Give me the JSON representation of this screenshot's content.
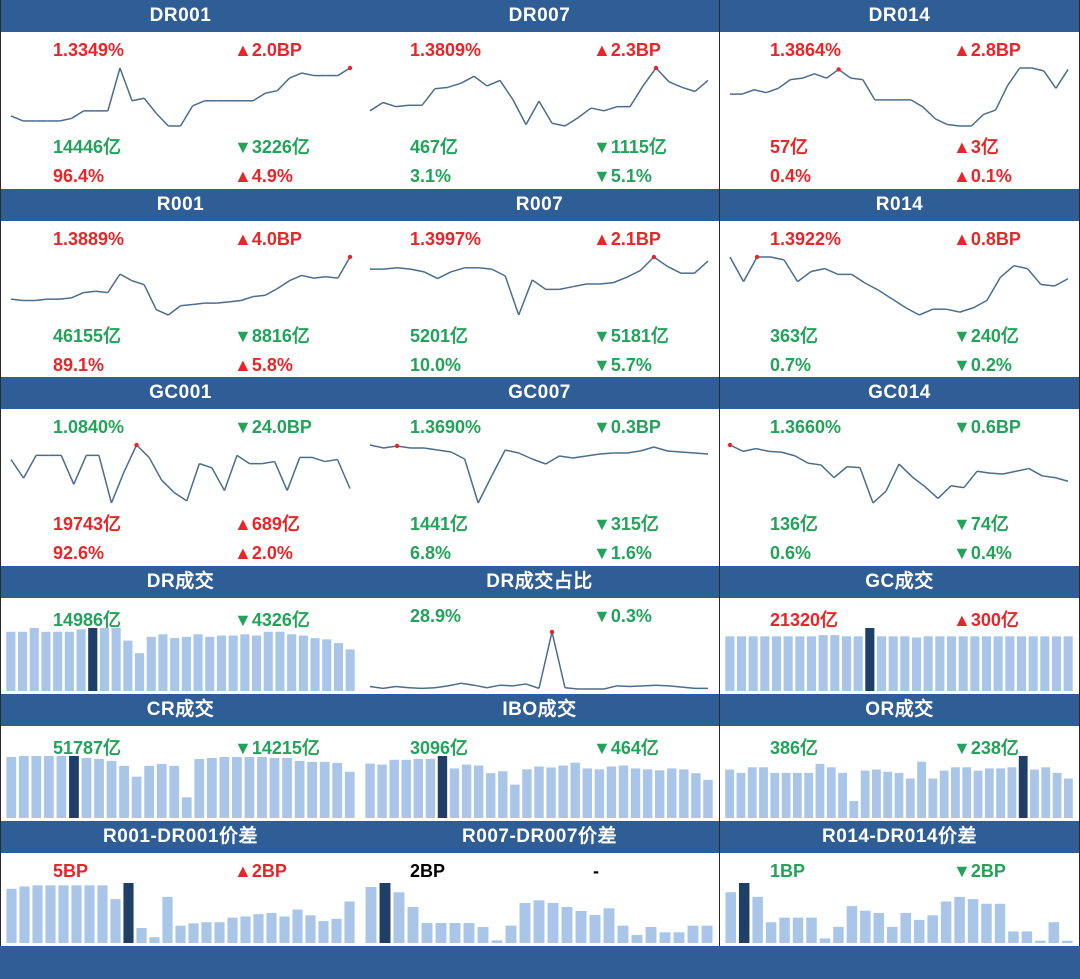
{
  "colors": {
    "header_bg": "#2f5e96",
    "up": "#e8262a",
    "down": "#23a35a",
    "line": "#4a6d8c",
    "bar": "#a9c6e8",
    "bar_highlight": "#1f3f66",
    "marker": "#e8262a"
  },
  "icons": {
    "up": "up-triangle",
    "down": "down-triangle"
  },
  "panels": [
    {
      "title": "DR001",
      "kind": "line",
      "rate": "1.3349%",
      "rate_color": "red",
      "change": "▲2.0BP",
      "change_color": "red",
      "volume": "14446亿",
      "volume_color": "green",
      "vol_change": "▼3226亿",
      "vol_change_color": "green",
      "share": "96.4%",
      "share_color": "red",
      "share_change": "▲4.9%",
      "share_change_color": "red",
      "series": [
        1.321,
        1.319,
        1.319,
        1.319,
        1.319,
        1.32,
        1.323,
        1.323,
        1.323,
        1.34,
        1.327,
        1.328,
        1.322,
        1.317,
        1.317,
        1.325,
        1.327,
        1.327,
        1.327,
        1.327,
        1.327,
        1.33,
        1.331,
        1.336,
        1.338,
        1.337,
        1.337,
        1.337,
        1.34
      ],
      "marker_index": 28
    },
    {
      "title": "DR007",
      "kind": "line",
      "rate": "1.3809%",
      "rate_color": "red",
      "change": "▲2.3BP",
      "change_color": "red",
      "volume": "467亿",
      "volume_color": "green",
      "vol_change": "▼1115亿",
      "vol_change_color": "green",
      "share": "3.1%",
      "share_color": "green",
      "share_change": "▼5.1%",
      "share_change_color": "green",
      "series": [
        1.35,
        1.356,
        1.353,
        1.354,
        1.354,
        1.366,
        1.367,
        1.37,
        1.375,
        1.368,
        1.372,
        1.358,
        1.34,
        1.357,
        1.341,
        1.339,
        1.345,
        1.352,
        1.35,
        1.353,
        1.353,
        1.368,
        1.381,
        1.371,
        1.367,
        1.364,
        1.372
      ],
      "marker_index": 22
    },
    {
      "title": "DR014",
      "kind": "line",
      "rate": "1.3864%",
      "rate_color": "red",
      "change": "▲2.8BP",
      "change_color": "red",
      "volume": "57亿",
      "volume_color": "red",
      "vol_change": "▲3亿",
      "vol_change_color": "red",
      "share": "0.4%",
      "share_color": "red",
      "share_change": "▲0.1%",
      "share_change_color": "red",
      "series": [
        1.369,
        1.369,
        1.372,
        1.37,
        1.373,
        1.379,
        1.38,
        1.383,
        1.38,
        1.386,
        1.38,
        1.379,
        1.365,
        1.365,
        1.365,
        1.365,
        1.36,
        1.352,
        1.348,
        1.347,
        1.347,
        1.355,
        1.358,
        1.375,
        1.387,
        1.387,
        1.385,
        1.373,
        1.386
      ],
      "marker_index": 9
    },
    {
      "title": "R001",
      "kind": "line",
      "rate": "1.3889%",
      "rate_color": "red",
      "change": "▲4.0BP",
      "change_color": "red",
      "volume": "46155亿",
      "volume_color": "green",
      "vol_change": "▼8816亿",
      "vol_change_color": "green",
      "share": "89.1%",
      "share_color": "red",
      "share_change": "▲5.8%",
      "share_change_color": "red",
      "series": [
        1.357,
        1.356,
        1.356,
        1.357,
        1.357,
        1.358,
        1.362,
        1.363,
        1.362,
        1.376,
        1.371,
        1.368,
        1.349,
        1.345,
        1.352,
        1.353,
        1.354,
        1.354,
        1.355,
        1.356,
        1.359,
        1.36,
        1.365,
        1.371,
        1.375,
        1.373,
        1.374,
        1.373,
        1.389
      ],
      "marker_index": 28
    },
    {
      "title": "R007",
      "kind": "line",
      "rate": "1.3997%",
      "rate_color": "red",
      "change": "▲2.1BP",
      "change_color": "red",
      "volume": "5201亿",
      "volume_color": "green",
      "vol_change": "▼5181亿",
      "vol_change_color": "green",
      "share": "10.0%",
      "share_color": "green",
      "share_change": "▼5.7%",
      "share_change_color": "green",
      "series": [
        1.391,
        1.391,
        1.392,
        1.391,
        1.389,
        1.384,
        1.389,
        1.392,
        1.392,
        1.391,
        1.386,
        1.357,
        1.383,
        1.376,
        1.376,
        1.378,
        1.38,
        1.38,
        1.381,
        1.385,
        1.39,
        1.4,
        1.393,
        1.388,
        1.388,
        1.397
      ],
      "marker_index": 21
    },
    {
      "title": "R014",
      "kind": "line",
      "rate": "1.3922%",
      "rate_color": "red",
      "change": "▲0.8BP",
      "change_color": "red",
      "volume": "363亿",
      "volume_color": "green",
      "vol_change": "▼240亿",
      "vol_change_color": "green",
      "share": "0.7%",
      "share_color": "green",
      "share_change": "▼0.2%",
      "share_change_color": "green",
      "series": [
        1.392,
        1.375,
        1.392,
        1.392,
        1.39,
        1.375,
        1.382,
        1.384,
        1.38,
        1.38,
        1.374,
        1.369,
        1.363,
        1.357,
        1.352,
        1.356,
        1.356,
        1.354,
        1.357,
        1.362,
        1.378,
        1.386,
        1.384,
        1.373,
        1.372,
        1.377
      ],
      "marker_index": 2
    },
    {
      "title": "GC001",
      "kind": "line",
      "rate": "1.0840%",
      "rate_color": "green",
      "change": "▼24.0BP",
      "change_color": "green",
      "volume": "19743亿",
      "volume_color": "red",
      "vol_change": "▲689亿",
      "vol_change_color": "red",
      "share": "92.6%",
      "share_color": "red",
      "share_change": "▲2.0%",
      "share_change_color": "red",
      "series": [
        1.24,
        1.15,
        1.26,
        1.26,
        1.26,
        1.12,
        1.26,
        1.26,
        1.03,
        1.18,
        1.31,
        1.25,
        1.14,
        1.08,
        1.04,
        1.22,
        1.2,
        1.09,
        1.26,
        1.22,
        1.22,
        1.23,
        1.09,
        1.25,
        1.25,
        1.23,
        1.24,
        1.1
      ],
      "marker_index": 10
    },
    {
      "title": "GC007",
      "kind": "line",
      "rate": "1.3690%",
      "rate_color": "green",
      "change": "▼0.3BP",
      "change_color": "green",
      "volume": "1441亿",
      "volume_color": "green",
      "vol_change": "▼315亿",
      "vol_change_color": "green",
      "share": "6.8%",
      "share_color": "green",
      "share_change": "▼1.6%",
      "share_change_color": "green",
      "series": [
        1.376,
        1.373,
        1.375,
        1.373,
        1.373,
        1.371,
        1.369,
        1.362,
        1.318,
        1.345,
        1.371,
        1.368,
        1.362,
        1.357,
        1.365,
        1.363,
        1.365,
        1.367,
        1.368,
        1.368,
        1.37,
        1.374,
        1.37,
        1.369,
        1.368,
        1.367
      ],
      "marker_index": 2
    },
    {
      "title": "GC014",
      "kind": "line",
      "rate": "1.3660%",
      "rate_color": "green",
      "change": "▼0.6BP",
      "change_color": "green",
      "volume": "136亿",
      "volume_color": "green",
      "vol_change": "▼74亿",
      "vol_change_color": "green",
      "share": "0.6%",
      "share_color": "green",
      "share_change": "▼0.4%",
      "share_change_color": "green",
      "series": [
        1.395,
        1.388,
        1.391,
        1.388,
        1.387,
        1.383,
        1.375,
        1.373,
        1.359,
        1.371,
        1.37,
        1.331,
        1.344,
        1.374,
        1.36,
        1.349,
        1.336,
        1.35,
        1.348,
        1.366,
        1.364,
        1.363,
        1.366,
        1.369,
        1.361,
        1.359,
        1.355
      ],
      "marker_index": 0
    },
    {
      "title": "DR成交",
      "kind": "bar",
      "rate": "14986亿",
      "rate_color": "green",
      "change": "▼4326亿",
      "change_color": "green",
      "series": [
        47,
        47,
        50,
        47,
        47,
        47,
        49,
        50,
        50,
        50,
        40,
        30,
        43,
        45,
        42,
        43,
        45,
        43,
        44,
        44,
        45,
        44,
        47,
        47,
        45,
        44,
        42,
        41,
        38,
        33
      ],
      "highlight_index": 7
    },
    {
      "title": "DR成交占比",
      "kind": "line",
      "rate": "28.9%",
      "rate_color": "green",
      "change": "▼0.3%",
      "change_color": "green",
      "series": [
        8,
        5,
        8,
        6,
        5,
        6,
        9,
        13,
        10,
        6,
        10,
        9,
        12,
        5,
        94,
        6,
        4,
        4,
        4,
        9,
        8,
        9,
        10,
        9,
        7,
        5,
        5
      ],
      "marker_index": 14
    },
    {
      "title": "GC成交",
      "kind": "bar",
      "rate": "21320亿",
      "rate_color": "red",
      "change": "▲300亿",
      "change_color": "red",
      "series": [
        46,
        46,
        46,
        46,
        46,
        46,
        46,
        46,
        47,
        47,
        46,
        46,
        53,
        46,
        46,
        46,
        45,
        46,
        46,
        46,
        46,
        46,
        46,
        46,
        46,
        46,
        46,
        46,
        46,
        46
      ],
      "highlight_index": 12
    },
    {
      "title": "CR成交",
      "kind": "bar",
      "rate": "51787亿",
      "rate_color": "green",
      "change": "▼14215亿",
      "change_color": "green",
      "series": [
        62,
        63,
        63,
        63,
        63,
        63,
        61,
        60,
        58,
        53,
        42,
        53,
        55,
        53,
        21,
        60,
        61,
        62,
        62,
        62,
        62,
        61,
        61,
        58,
        57,
        57,
        56,
        47
      ],
      "highlight_index": 5
    },
    {
      "title": "IBO成交",
      "kind": "bar",
      "rate": "3096亿",
      "rate_color": "green",
      "change": "▼464亿",
      "change_color": "green",
      "series": [
        57,
        56,
        61,
        61,
        62,
        62,
        65,
        52,
        56,
        55,
        47,
        49,
        35,
        51,
        54,
        53,
        55,
        58,
        52,
        51,
        54,
        55,
        52,
        51,
        50,
        52,
        51,
        47,
        40
      ],
      "highlight_index": 6
    },
    {
      "title": "OR成交",
      "kind": "bar",
      "rate": "386亿",
      "rate_color": "green",
      "change": "▼238亿",
      "change_color": "green",
      "series": [
        43,
        40,
        45,
        45,
        40,
        40,
        40,
        40,
        48,
        45,
        40,
        15,
        42,
        43,
        41,
        40,
        35,
        50,
        35,
        42,
        45,
        45,
        42,
        44,
        44,
        45,
        55,
        43,
        45,
        40,
        35
      ],
      "highlight_index": 26
    },
    {
      "title": "R001-DR001价差",
      "kind": "bar",
      "rate": "5BP",
      "rate_color": "red",
      "change": "▲2BP",
      "change_color": "red",
      "series": [
        47,
        49,
        50,
        50,
        50,
        50,
        50,
        50,
        38,
        52,
        13,
        5,
        40,
        15,
        17,
        18,
        18,
        22,
        23,
        25,
        26,
        23,
        29,
        24,
        19,
        21,
        36
      ],
      "highlight_index": 9
    },
    {
      "title": "R007-DR007价差",
      "kind": "bar",
      "rate": "2BP",
      "rate_color": "black",
      "change": "-",
      "change_color": "black",
      "series": [
        42,
        45,
        38,
        27,
        15,
        15,
        15,
        15,
        12,
        2,
        13,
        30,
        32,
        30,
        27,
        24,
        21,
        26,
        13,
        6,
        12,
        8,
        8,
        13,
        13
      ],
      "highlight_index": 1
    },
    {
      "title": "R014-DR014价差",
      "kind": "bar",
      "rate": "1BP",
      "rate_color": "green",
      "change": "▼2BP",
      "change_color": "green",
      "series": [
        22,
        26,
        20,
        9,
        11,
        11,
        11,
        2,
        7,
        16,
        14,
        13,
        7,
        13,
        10,
        12,
        18,
        20,
        19,
        17,
        17,
        5,
        5,
        1,
        9,
        1
      ],
      "highlight_index": 1
    }
  ]
}
